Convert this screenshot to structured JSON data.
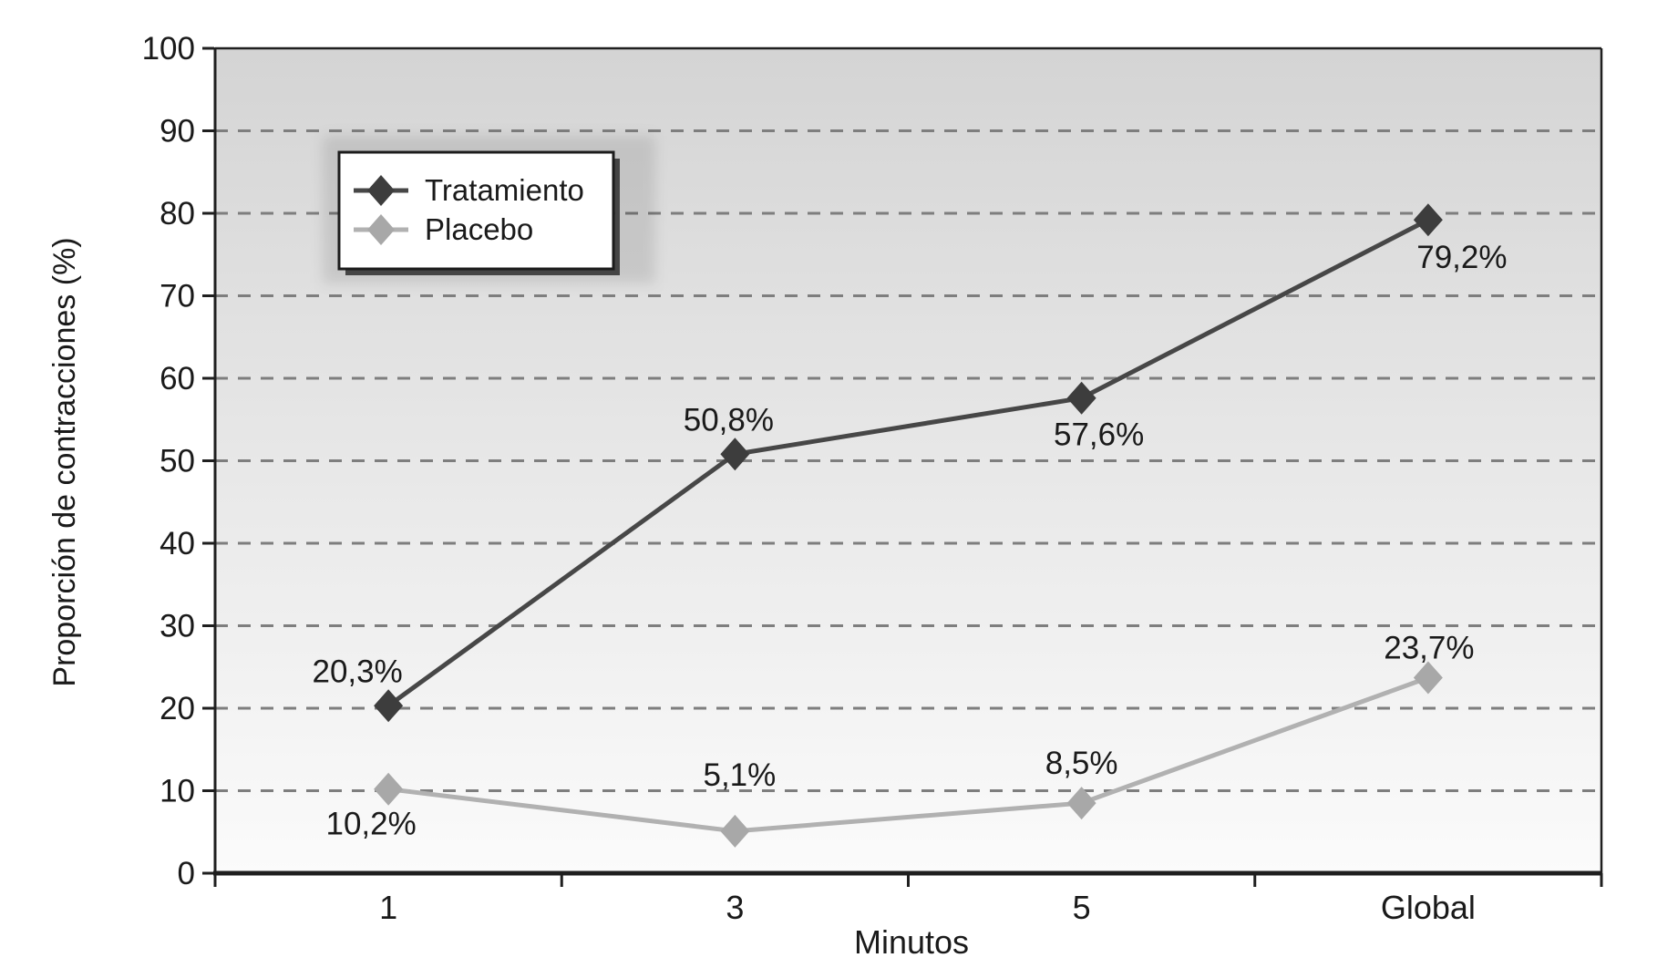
{
  "figure": {
    "background": "#ffffff",
    "plot_gradient_top": "#d4d4d4",
    "plot_gradient_bottom": "#fbfbfb",
    "gridline_color": "#7e7e7e",
    "axis_color": "#1f1f1f",
    "text_color": "#1a1a1a"
  },
  "legend": {
    "position": "top-left",
    "box_fill": "#ffffff",
    "box_border": "#1c1c1c",
    "shadow_color": "#2e2e2e"
  },
  "chart_data": {
    "type": "line",
    "title": "",
    "xlabel": "Minutos",
    "ylabel": "Proporción de contracciones (%)",
    "categories": [
      "1",
      "3",
      "5",
      "Global"
    ],
    "ylim": [
      0,
      100
    ],
    "y_ticks": [
      0,
      10,
      20,
      30,
      40,
      50,
      60,
      70,
      80,
      90,
      100
    ],
    "grid": "horizontal-dashed",
    "legend_position": "top-left",
    "series": [
      {
        "name": "Tratamiento",
        "line_color": "#474747",
        "marker_color": "#3d3d3d",
        "marker": "diamond",
        "values": [
          20.3,
          50.8,
          57.6,
          79.2
        ],
        "labels": [
          {
            "text": "20,3%",
            "dx": -34,
            "dy": -38
          },
          {
            "text": "50,8%",
            "dx": -7,
            "dy": -38
          },
          {
            "text": "57,6%",
            "dx": 19,
            "dy": 40
          },
          {
            "text": "79,2%",
            "dx": 37,
            "dy": 41
          }
        ]
      },
      {
        "name": "Placebo",
        "line_color": "#b1b1b1",
        "marker_color": "#a8a8a8",
        "marker": "diamond",
        "values": [
          10.2,
          5.1,
          8.5,
          23.7
        ],
        "labels": [
          {
            "text": "10,2%",
            "dx": -19,
            "dy": 38
          },
          {
            "text": "5,1%",
            "dx": 5,
            "dy": -62
          },
          {
            "text": "8,5%",
            "dx": 0,
            "dy": -44
          },
          {
            "text": "23,7%",
            "dx": 1,
            "dy": -33
          }
        ]
      }
    ]
  }
}
